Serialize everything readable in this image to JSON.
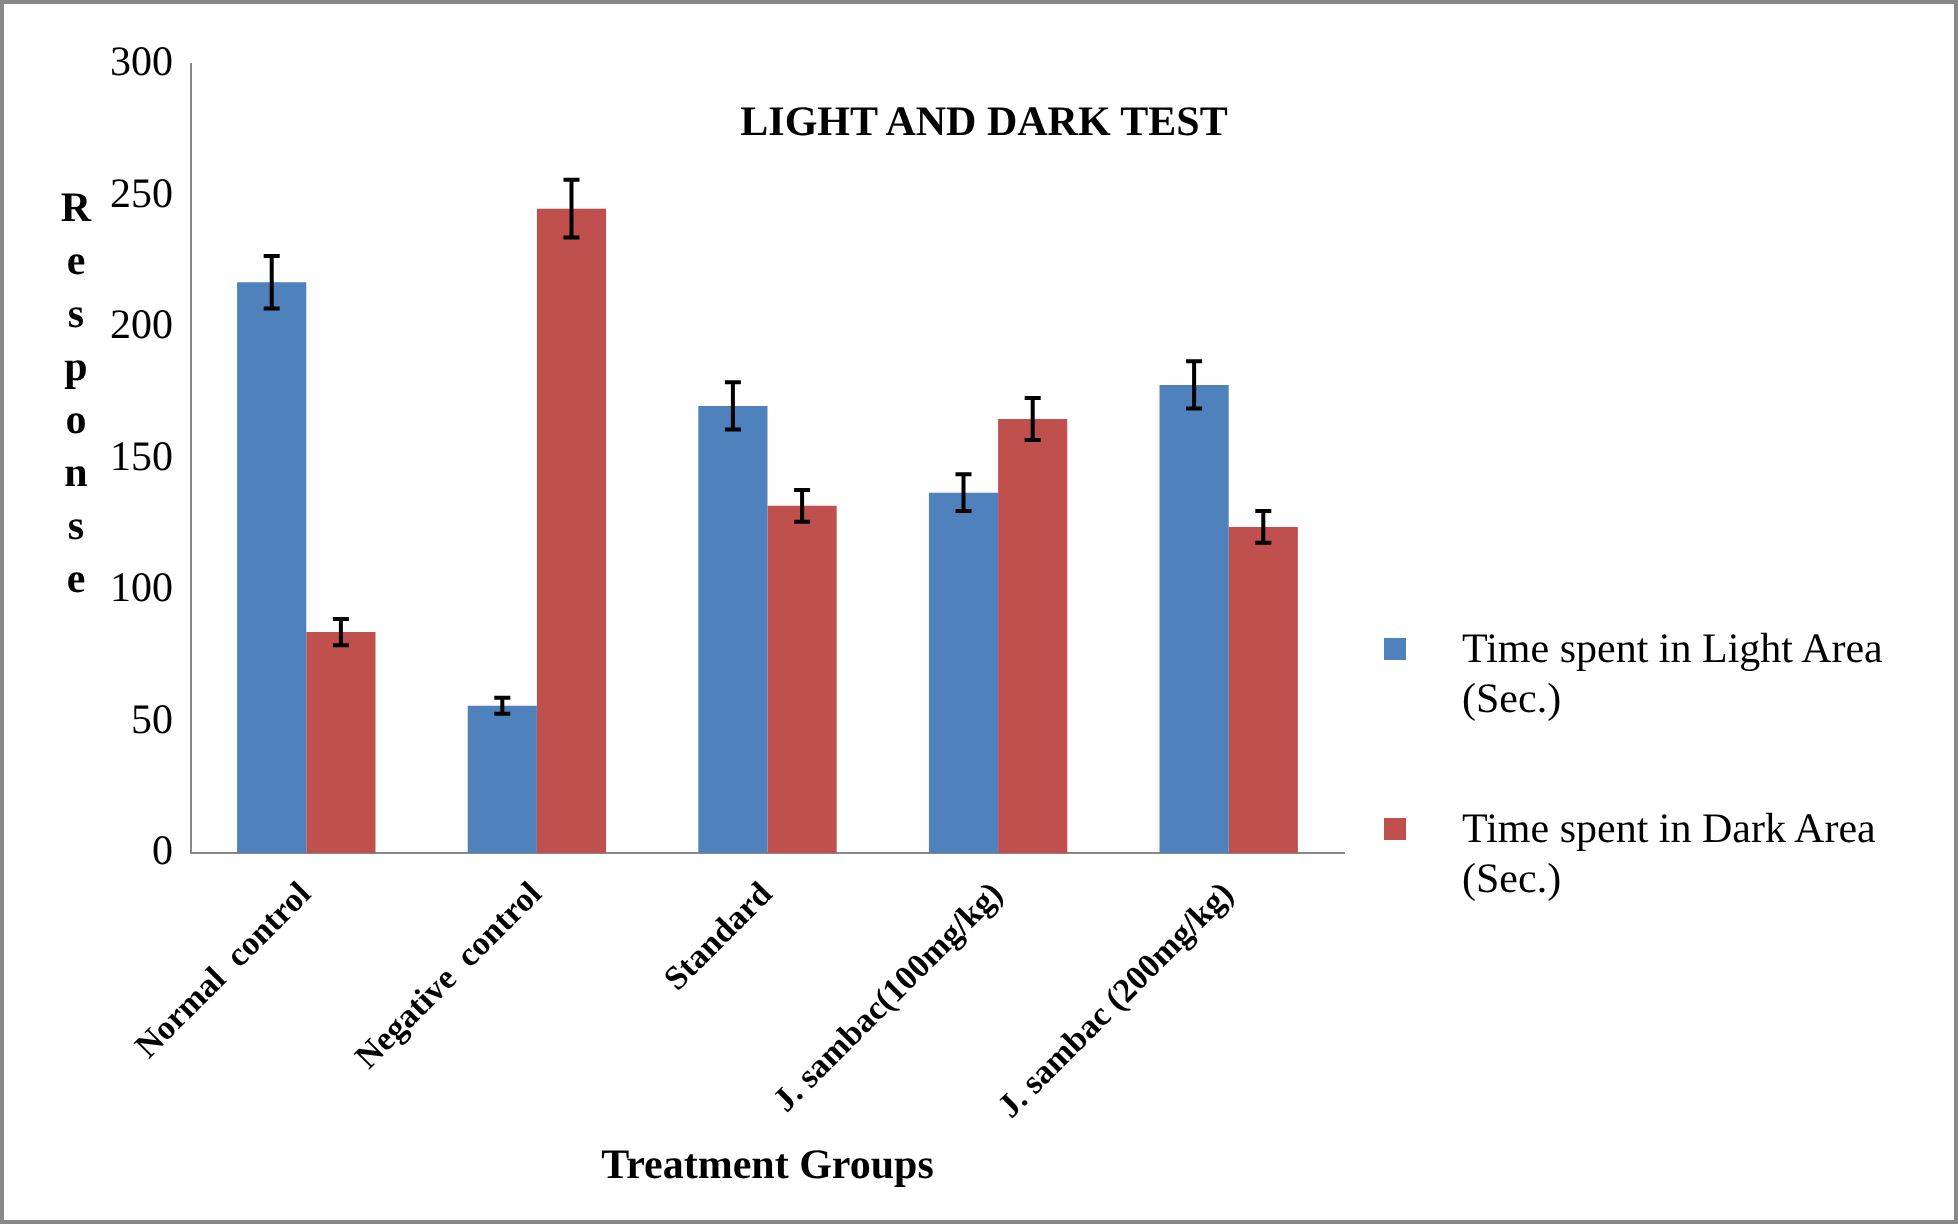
{
  "chart_data": {
    "type": "bar",
    "title": "LIGHT AND DARK TEST",
    "xlabel": "Treatment Groups",
    "ylabel": "Response",
    "categories": [
      "Normal  control",
      "Negative  control",
      "Standard",
      "J. sambac(100mg/kg)",
      "J. sambac (200mg/kg)"
    ],
    "series": [
      {
        "name": "Time spent in Light Area (Sec.)",
        "color": "#4f81bd",
        "values": [
          217,
          56,
          170,
          137,
          178
        ],
        "errors": [
          10,
          3,
          9,
          7,
          9
        ]
      },
      {
        "name": "Time spent in Dark Area (Sec.)",
        "color": "#c0504d",
        "values": [
          84,
          245,
          132,
          165,
          124
        ],
        "errors": [
          5,
          11,
          6,
          8,
          6
        ]
      }
    ],
    "ylim": [
      0,
      300
    ],
    "yticks": [
      0,
      50,
      100,
      150,
      200,
      250,
      300
    ],
    "legend": "right"
  }
}
